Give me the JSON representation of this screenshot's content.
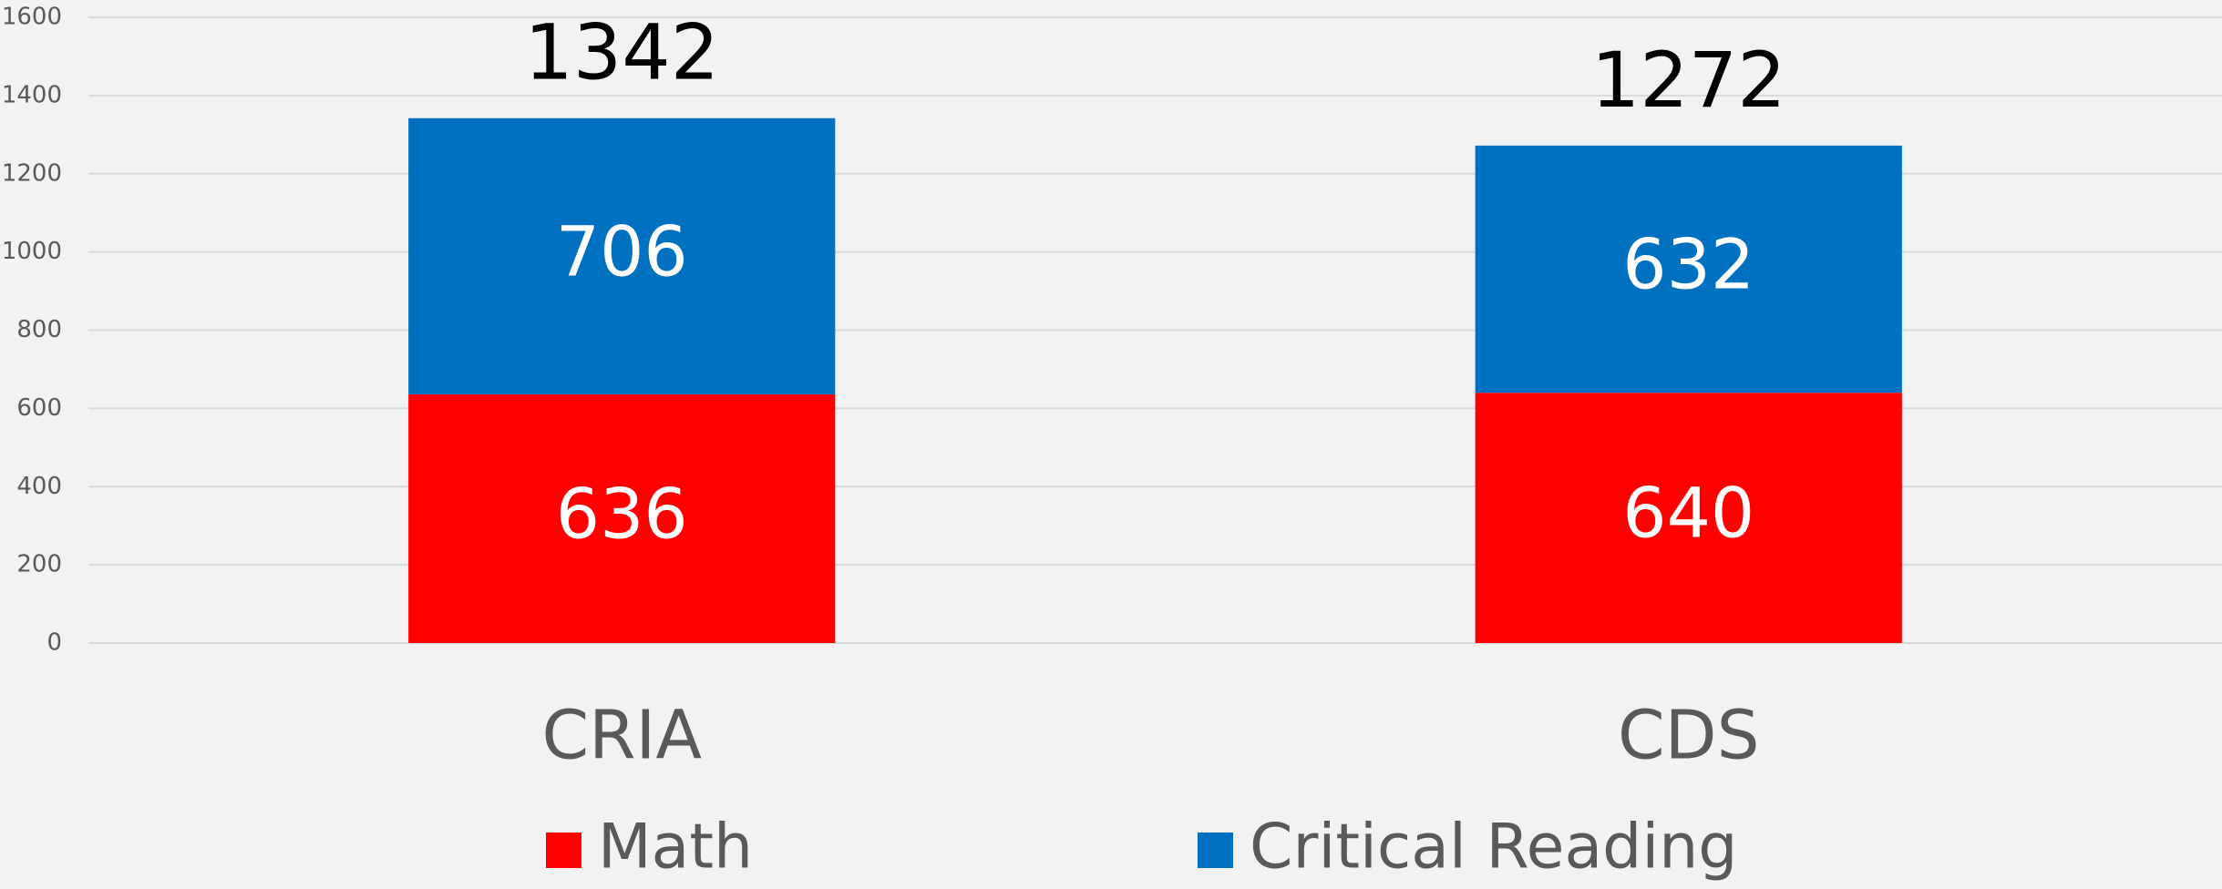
{
  "chart_data": {
    "type": "stacked_bar",
    "categories": [
      "CRIA",
      "CDS"
    ],
    "series": [
      {
        "name": "Math",
        "color": "#ff0000",
        "values": [
          636,
          640
        ]
      },
      {
        "name": "Critical Reading",
        "color": "#0070c0",
        "values": [
          706,
          632
        ]
      }
    ],
    "total_labels": [
      "1342",
      "1272"
    ],
    "ylim": [
      0,
      1600
    ],
    "yticks": [
      0,
      200,
      400,
      600,
      800,
      1000,
      1200,
      1400,
      1600
    ],
    "grid": true,
    "legend": "bottom"
  }
}
